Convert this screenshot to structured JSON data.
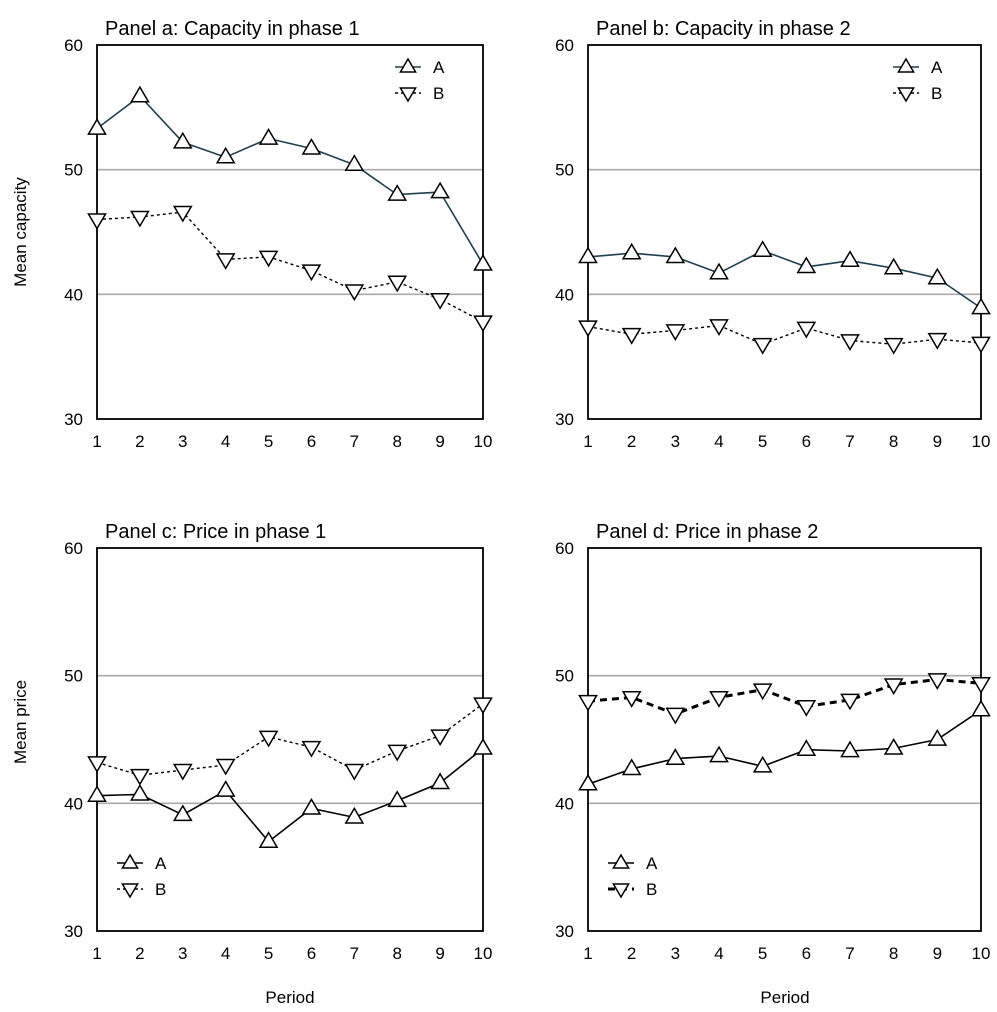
{
  "figure": {
    "y_label_top": "Mean capacity",
    "y_label_bottom": "Mean price",
    "x_label": "Period"
  },
  "chart_data": [
    {
      "type": "line",
      "title": "Panel a: Capacity in phase 1",
      "xlabel": "",
      "ylabel": "Mean capacity",
      "x": [
        1,
        2,
        3,
        4,
        5,
        6,
        7,
        8,
        9,
        10
      ],
      "ylim": [
        30,
        60
      ],
      "yticks": [
        30,
        40,
        50,
        60
      ],
      "grid_y": [
        40,
        50
      ],
      "legend": "top-right",
      "series": [
        {
          "name": "A",
          "marker": "triangle-up",
          "style": "solid",
          "color": "#1f3f4f",
          "values": [
            53.3,
            55.9,
            52.2,
            51.0,
            52.5,
            51.7,
            50.4,
            48.0,
            48.2,
            42.4
          ]
        },
        {
          "name": "B",
          "marker": "triangle-down",
          "style": "dotted",
          "color": "#000000",
          "values": [
            46.0,
            46.2,
            46.6,
            42.8,
            43.0,
            41.9,
            40.3,
            41.0,
            39.6,
            37.8
          ]
        }
      ]
    },
    {
      "type": "line",
      "title": "Panel b: Capacity in phase 2",
      "xlabel": "",
      "ylabel": "",
      "x": [
        1,
        2,
        3,
        4,
        5,
        6,
        7,
        8,
        9,
        10
      ],
      "ylim": [
        30,
        60
      ],
      "yticks": [
        30,
        40,
        50,
        60
      ],
      "grid_y": [
        40,
        50
      ],
      "legend": "top-right",
      "series": [
        {
          "name": "A",
          "marker": "triangle-up",
          "style": "solid",
          "color": "#1f3f4f",
          "values": [
            43.0,
            43.3,
            43.0,
            41.7,
            43.5,
            42.2,
            42.7,
            42.1,
            41.3,
            38.9
          ]
        },
        {
          "name": "B",
          "marker": "triangle-down",
          "style": "dotted",
          "color": "#000000",
          "values": [
            37.4,
            36.8,
            37.1,
            37.5,
            36.0,
            37.3,
            36.3,
            36.0,
            36.4,
            36.1
          ]
        }
      ]
    },
    {
      "type": "line",
      "title": "Panel c: Price in phase 1",
      "xlabel": "Period",
      "ylabel": "Mean price",
      "x": [
        1,
        2,
        3,
        4,
        5,
        6,
        7,
        8,
        9,
        10
      ],
      "ylim": [
        30,
        60
      ],
      "yticks": [
        30,
        40,
        50,
        60
      ],
      "grid_y": [
        40,
        50
      ],
      "legend": "bottom-left",
      "series": [
        {
          "name": "A",
          "marker": "triangle-up",
          "style": "solid",
          "color": "#000000",
          "values": [
            40.6,
            40.7,
            39.1,
            41.0,
            37.0,
            39.6,
            38.9,
            40.2,
            41.6,
            44.3
          ]
        },
        {
          "name": "B",
          "marker": "triangle-down",
          "style": "dotted",
          "color": "#000000",
          "values": [
            43.2,
            42.2,
            42.6,
            43.0,
            45.2,
            44.4,
            42.6,
            44.1,
            45.3,
            47.8
          ]
        }
      ]
    },
    {
      "type": "line",
      "title": "Panel d: Price in phase 2",
      "xlabel": "Period",
      "ylabel": "",
      "x": [
        1,
        2,
        3,
        4,
        5,
        6,
        7,
        8,
        9,
        10
      ],
      "ylim": [
        30,
        60
      ],
      "yticks": [
        30,
        40,
        50,
        60
      ],
      "grid_y": [
        40,
        50
      ],
      "legend": "bottom-left",
      "series": [
        {
          "name": "A",
          "marker": "triangle-up",
          "style": "solid",
          "color": "#000000",
          "values": [
            41.5,
            42.7,
            43.5,
            43.7,
            42.9,
            44.2,
            44.1,
            44.3,
            45.0,
            47.3
          ]
        },
        {
          "name": "B",
          "marker": "triangle-down",
          "style": "bold-dashed",
          "color": "#000000",
          "values": [
            48.0,
            48.3,
            47.0,
            48.3,
            48.9,
            47.6,
            48.1,
            49.3,
            49.7,
            49.4
          ]
        }
      ]
    }
  ]
}
